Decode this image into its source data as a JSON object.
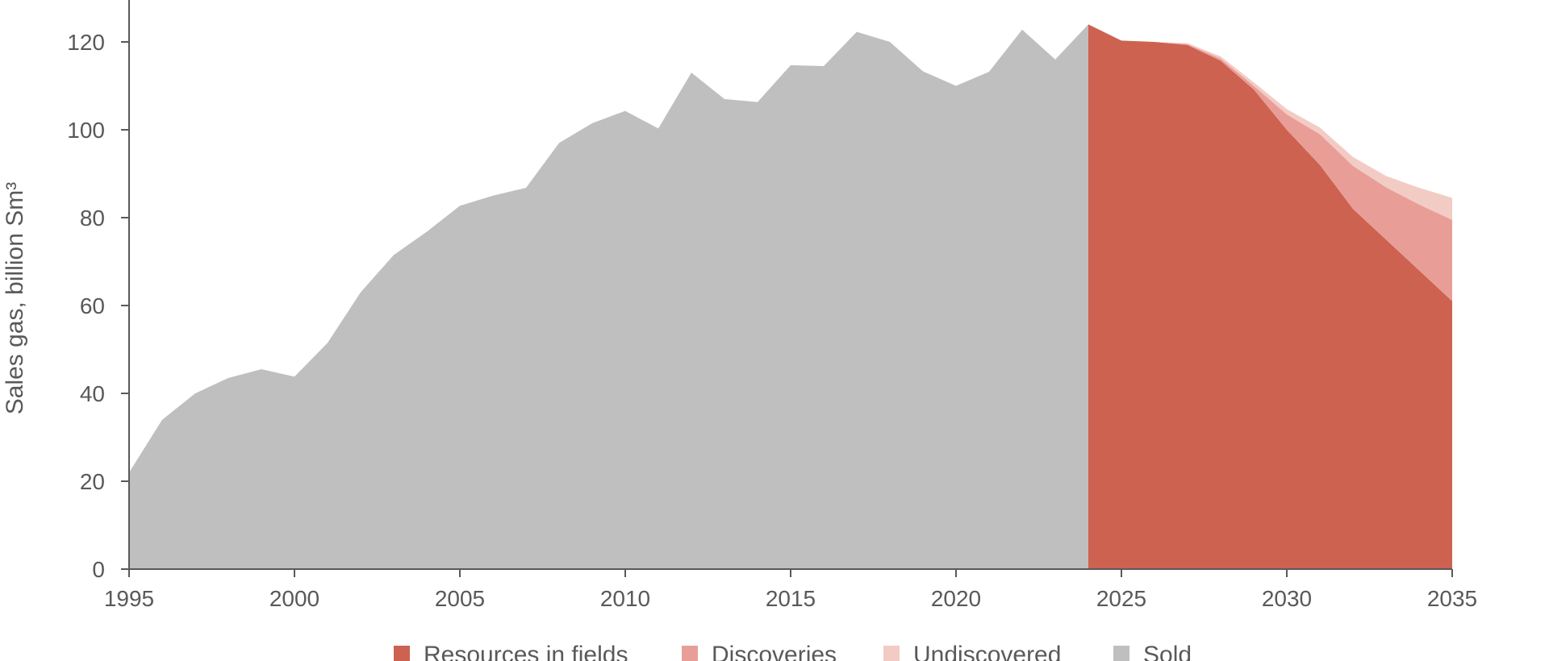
{
  "chart_data": {
    "type": "area",
    "ylabel": "Sales gas, billion Sm³",
    "xlim": [
      1995,
      2035
    ],
    "ylim": [
      0,
      130
    ],
    "xticks": [
      "1995",
      "2000",
      "2005",
      "2010",
      "2015",
      "2020",
      "2025",
      "2030",
      "2035"
    ],
    "yticks": [
      "0",
      "20",
      "40",
      "60",
      "80",
      "100",
      "120"
    ],
    "grid": false,
    "legend_position": "bottom",
    "series": [
      {
        "name": "Sold",
        "color": "#bfbfbf",
        "x": [
          1995,
          1996,
          1997,
          1998,
          1999,
          2000,
          2001,
          2002,
          2003,
          2004,
          2005,
          2006,
          2007,
          2008,
          2009,
          2010,
          2011,
          2012,
          2013,
          2014,
          2015,
          2016,
          2017,
          2018,
          2019,
          2020,
          2021,
          2022,
          2023,
          2024
        ],
        "values": [
          22.0,
          34.0,
          40.0,
          43.5,
          45.5,
          43.8,
          51.5,
          63.0,
          71.5,
          76.8,
          82.7,
          85.0,
          86.8,
          97.0,
          101.5,
          104.3,
          100.3,
          113.0,
          107.0,
          106.3,
          114.7,
          114.5,
          122.3,
          120.0,
          113.3,
          110.0,
          113.2,
          122.8,
          116.0,
          124.0
        ]
      },
      {
        "name": "Resources in fields",
        "color": "#cd6251",
        "x": [
          2024,
          2025,
          2026,
          2027,
          2028,
          2029,
          2030,
          2031,
          2032,
          2033,
          2034,
          2035
        ],
        "values": [
          124.0,
          120.3,
          120.0,
          119.3,
          115.7,
          109.2,
          100.0,
          92.0,
          82.0,
          75.0,
          68.0,
          61.0
        ]
      },
      {
        "name": "Discoveries",
        "color": "#e89e96",
        "x": [
          2024,
          2025,
          2026,
          2027,
          2028,
          2029,
          2030,
          2031,
          2032,
          2033,
          2034,
          2035
        ],
        "values": [
          0,
          0,
          0,
          0.2,
          0.5,
          0.8,
          3.5,
          7.0,
          9.8,
          11.9,
          15.0,
          18.5
        ]
      },
      {
        "name": "Undiscovered",
        "color": "#f3cbc5",
        "x": [
          2024,
          2025,
          2026,
          2027,
          2028,
          2029,
          2030,
          2031,
          2032,
          2033,
          2034,
          2035
        ],
        "values": [
          0,
          0,
          0,
          0.2,
          0.5,
          0.8,
          1.2,
          1.5,
          2.0,
          2.6,
          3.8,
          5.0
        ]
      }
    ],
    "legend": [
      "Resources in fields",
      "Discoveries",
      "Undiscovered",
      "Sold"
    ]
  }
}
